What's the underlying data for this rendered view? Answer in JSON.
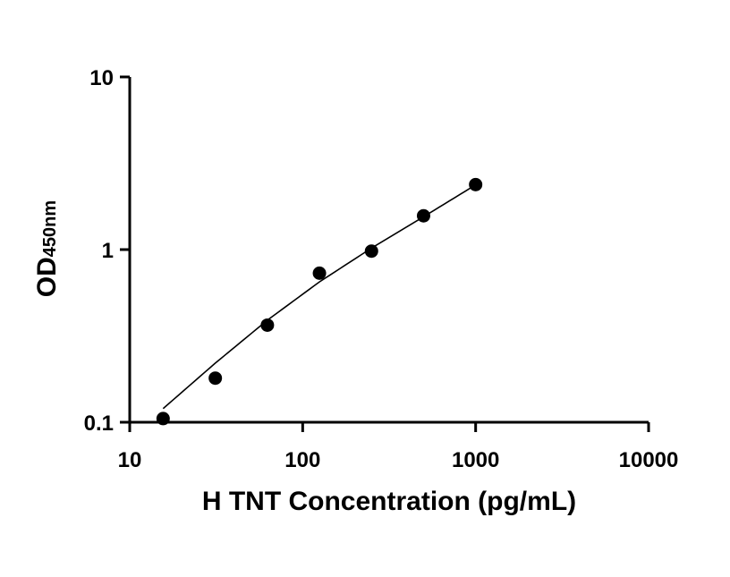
{
  "chart_data": {
    "type": "scatter",
    "title": "",
    "xlabel": "H TNT Concentration (pg/mL)",
    "ylabel": {
      "main": "OD",
      "sub": "450nm"
    },
    "x_scale": "log",
    "y_scale": "log",
    "xlim": [
      10,
      10000
    ],
    "ylim": [
      0.1,
      10
    ],
    "x_ticks": [
      10,
      100,
      1000,
      10000
    ],
    "x_tick_labels": [
      "10",
      "100",
      "1000",
      "10000"
    ],
    "y_ticks": [
      0.1,
      1,
      10
    ],
    "y_tick_labels": [
      "0.1",
      "1",
      "10"
    ],
    "grid": false,
    "legend": "none",
    "series": [
      {
        "kind": "points",
        "x": [
          15.6,
          31.25,
          62.5,
          125,
          250,
          500,
          1000
        ],
        "y": [
          0.105,
          0.18,
          0.365,
          0.73,
          0.98,
          1.57,
          2.38
        ]
      },
      {
        "kind": "fit-curve",
        "x": [
          15.6,
          31.25,
          62.5,
          125,
          250,
          500,
          1000
        ],
        "y": [
          0.12,
          0.22,
          0.39,
          0.65,
          1.02,
          1.55,
          2.37
        ]
      }
    ],
    "colors": {
      "axis": "#000000",
      "marker": "#000000",
      "curve": "#000000"
    }
  }
}
